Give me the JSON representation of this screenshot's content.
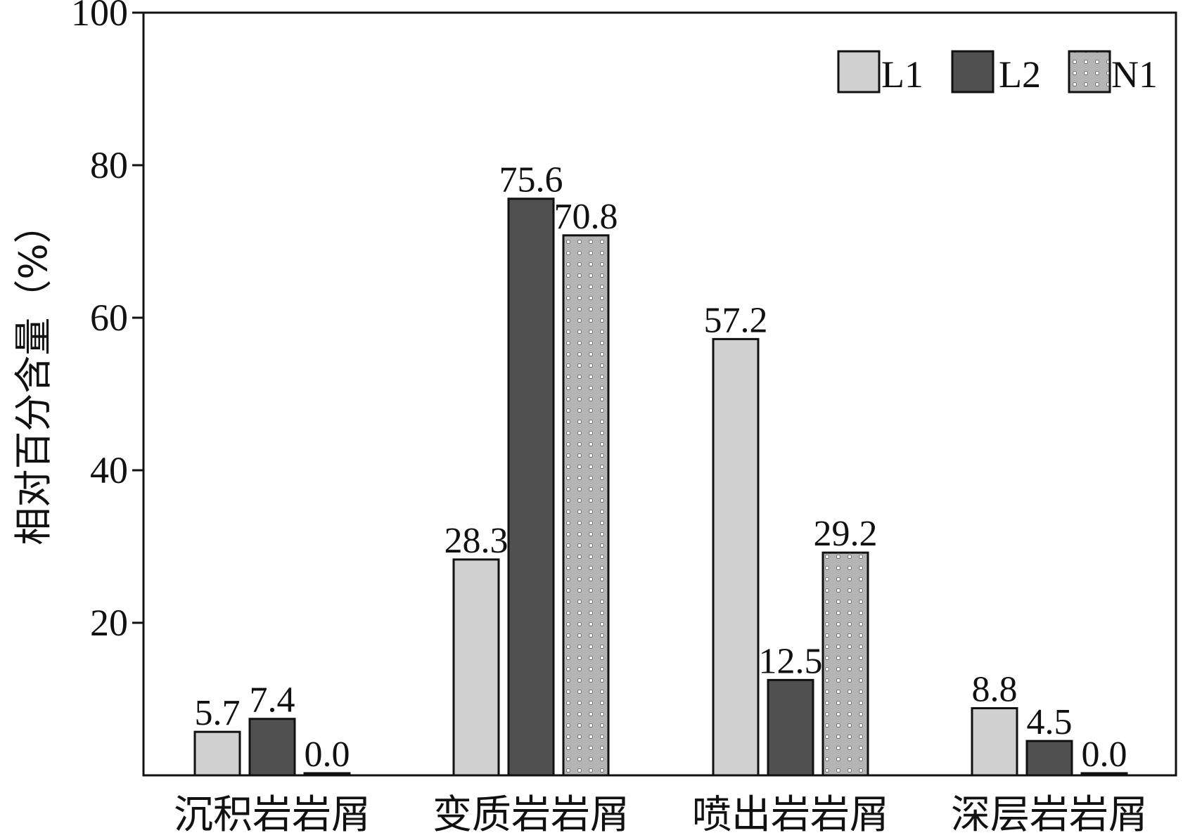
{
  "chart_data": {
    "type": "bar",
    "title": "",
    "xlabel": "",
    "ylabel": "相对百分含量（%）",
    "ylim": [
      0,
      100
    ],
    "yticks": [
      20,
      40,
      60,
      80,
      100
    ],
    "grid": false,
    "legend_position": "top-right",
    "categories": [
      "沉积岩岩屑",
      "变质岩岩屑",
      "喷出岩岩屑",
      "深层岩岩屑"
    ],
    "series": [
      {
        "name": "L1",
        "values": [
          5.7,
          28.3,
          57.2,
          8.8
        ],
        "labels": [
          "5.7",
          "28.3",
          "57.2",
          "8.8"
        ],
        "fill": "#d0d0d0",
        "pattern": "solid"
      },
      {
        "name": "L2",
        "values": [
          7.4,
          75.6,
          12.5,
          4.5
        ],
        "labels": [
          "7.4",
          "75.6",
          "12.5",
          "4.5"
        ],
        "fill": "#505050",
        "pattern": "solid"
      },
      {
        "name": "N1",
        "values": [
          0.0,
          70.8,
          29.2,
          0.0
        ],
        "labels": [
          "0.0",
          "70.8",
          "29.2",
          "0.0"
        ],
        "fill": "#b4b4b4",
        "pattern": "dots"
      }
    ]
  }
}
